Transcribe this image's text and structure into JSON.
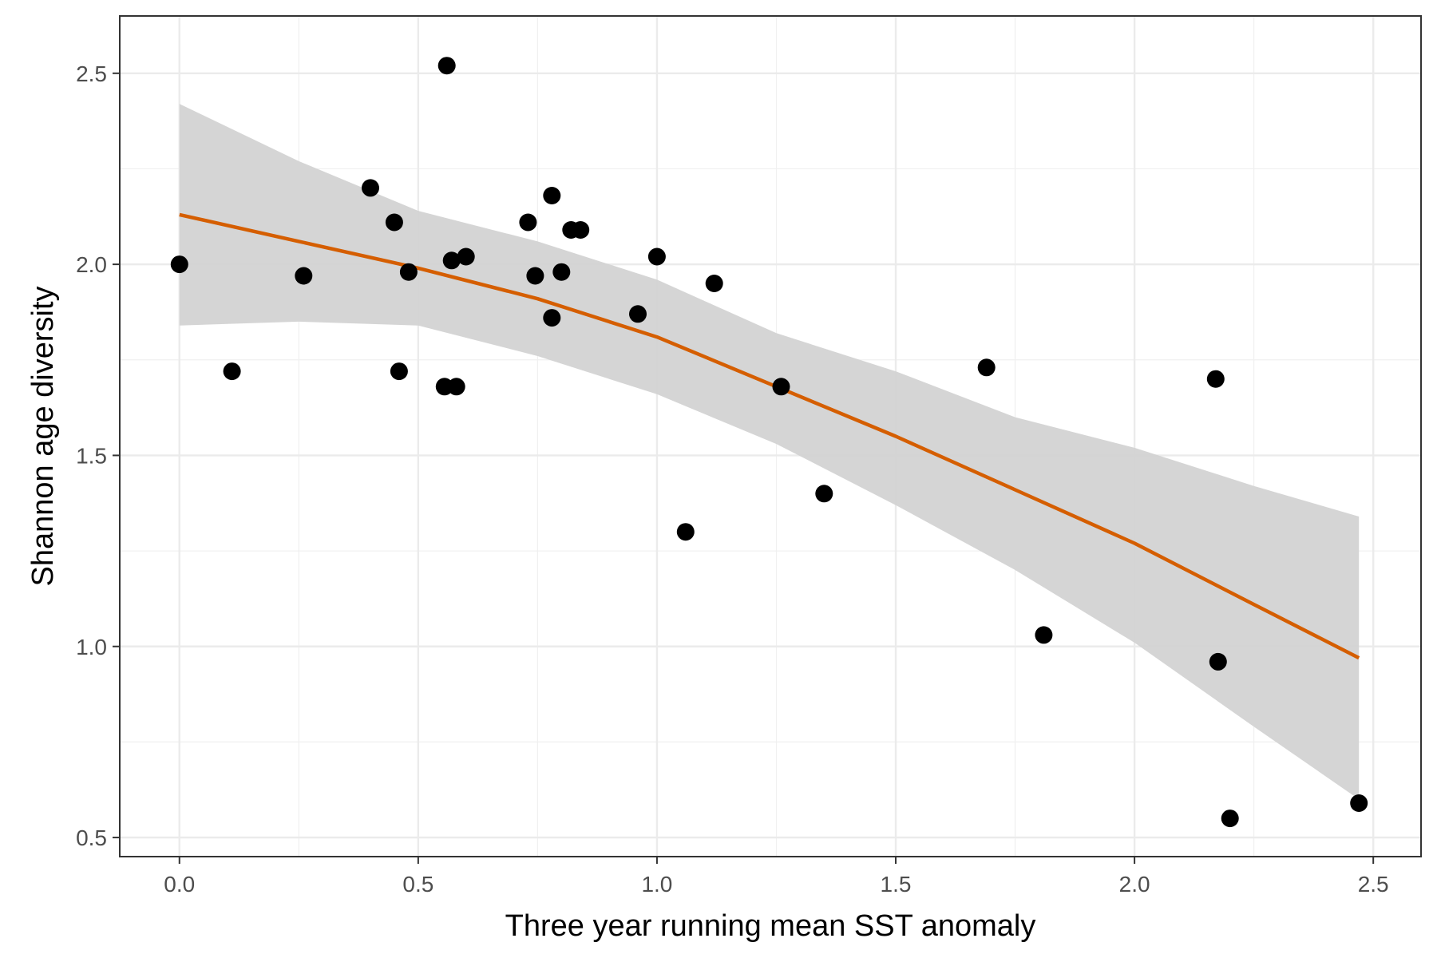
{
  "chart_data": {
    "type": "scatter",
    "title": "",
    "xlabel": "Three year running mean SST anomaly",
    "ylabel": "Shannon age diversity",
    "xlim": [
      -0.125,
      2.6
    ],
    "ylim": [
      0.45,
      2.65
    ],
    "x_ticks": [
      "0.0",
      "0.5",
      "1.0",
      "1.5",
      "2.0",
      "2.5"
    ],
    "y_ticks": [
      "0.5",
      "1.0",
      "1.5",
      "2.0",
      "2.5"
    ],
    "x_tick_values": [
      0,
      0.5,
      1.0,
      1.5,
      2.0,
      2.5
    ],
    "y_tick_values": [
      0.5,
      1.0,
      1.5,
      2.0,
      2.5
    ],
    "grid": true,
    "points": [
      {
        "x": 0.0,
        "y": 2.0
      },
      {
        "x": 0.11,
        "y": 1.72
      },
      {
        "x": 0.26,
        "y": 1.97
      },
      {
        "x": 0.4,
        "y": 2.2
      },
      {
        "x": 0.45,
        "y": 2.11
      },
      {
        "x": 0.46,
        "y": 1.72
      },
      {
        "x": 0.48,
        "y": 1.98
      },
      {
        "x": 0.56,
        "y": 2.52
      },
      {
        "x": 0.555,
        "y": 1.68
      },
      {
        "x": 0.57,
        "y": 2.01
      },
      {
        "x": 0.58,
        "y": 1.68
      },
      {
        "x": 0.6,
        "y": 2.02
      },
      {
        "x": 0.73,
        "y": 2.11
      },
      {
        "x": 0.745,
        "y": 1.97
      },
      {
        "x": 0.78,
        "y": 2.18
      },
      {
        "x": 0.78,
        "y": 1.86
      },
      {
        "x": 0.8,
        "y": 1.98
      },
      {
        "x": 0.82,
        "y": 2.09
      },
      {
        "x": 0.84,
        "y": 2.09
      },
      {
        "x": 0.96,
        "y": 1.87
      },
      {
        "x": 1.0,
        "y": 2.02
      },
      {
        "x": 1.06,
        "y": 1.3
      },
      {
        "x": 1.12,
        "y": 1.95
      },
      {
        "x": 1.26,
        "y": 1.68
      },
      {
        "x": 1.35,
        "y": 1.4
      },
      {
        "x": 1.69,
        "y": 1.73
      },
      {
        "x": 1.81,
        "y": 1.03
      },
      {
        "x": 2.17,
        "y": 1.7
      },
      {
        "x": 2.175,
        "y": 0.96
      },
      {
        "x": 2.2,
        "y": 0.55
      },
      {
        "x": 2.47,
        "y": 0.59
      }
    ],
    "smooth": {
      "color": "#d55e00",
      "band_color": "#d3d3d3",
      "x": [
        0.0,
        0.25,
        0.5,
        0.75,
        1.0,
        1.25,
        1.5,
        1.75,
        2.0,
        2.25,
        2.47
      ],
      "fit": [
        2.13,
        2.06,
        1.99,
        1.91,
        1.81,
        1.68,
        1.55,
        1.41,
        1.27,
        1.11,
        0.97
      ],
      "lower": [
        1.84,
        1.85,
        1.84,
        1.76,
        1.66,
        1.53,
        1.37,
        1.2,
        1.01,
        0.79,
        0.6
      ],
      "upper": [
        2.42,
        2.27,
        2.14,
        2.06,
        1.96,
        1.82,
        1.72,
        1.6,
        1.52,
        1.42,
        1.34
      ]
    }
  }
}
